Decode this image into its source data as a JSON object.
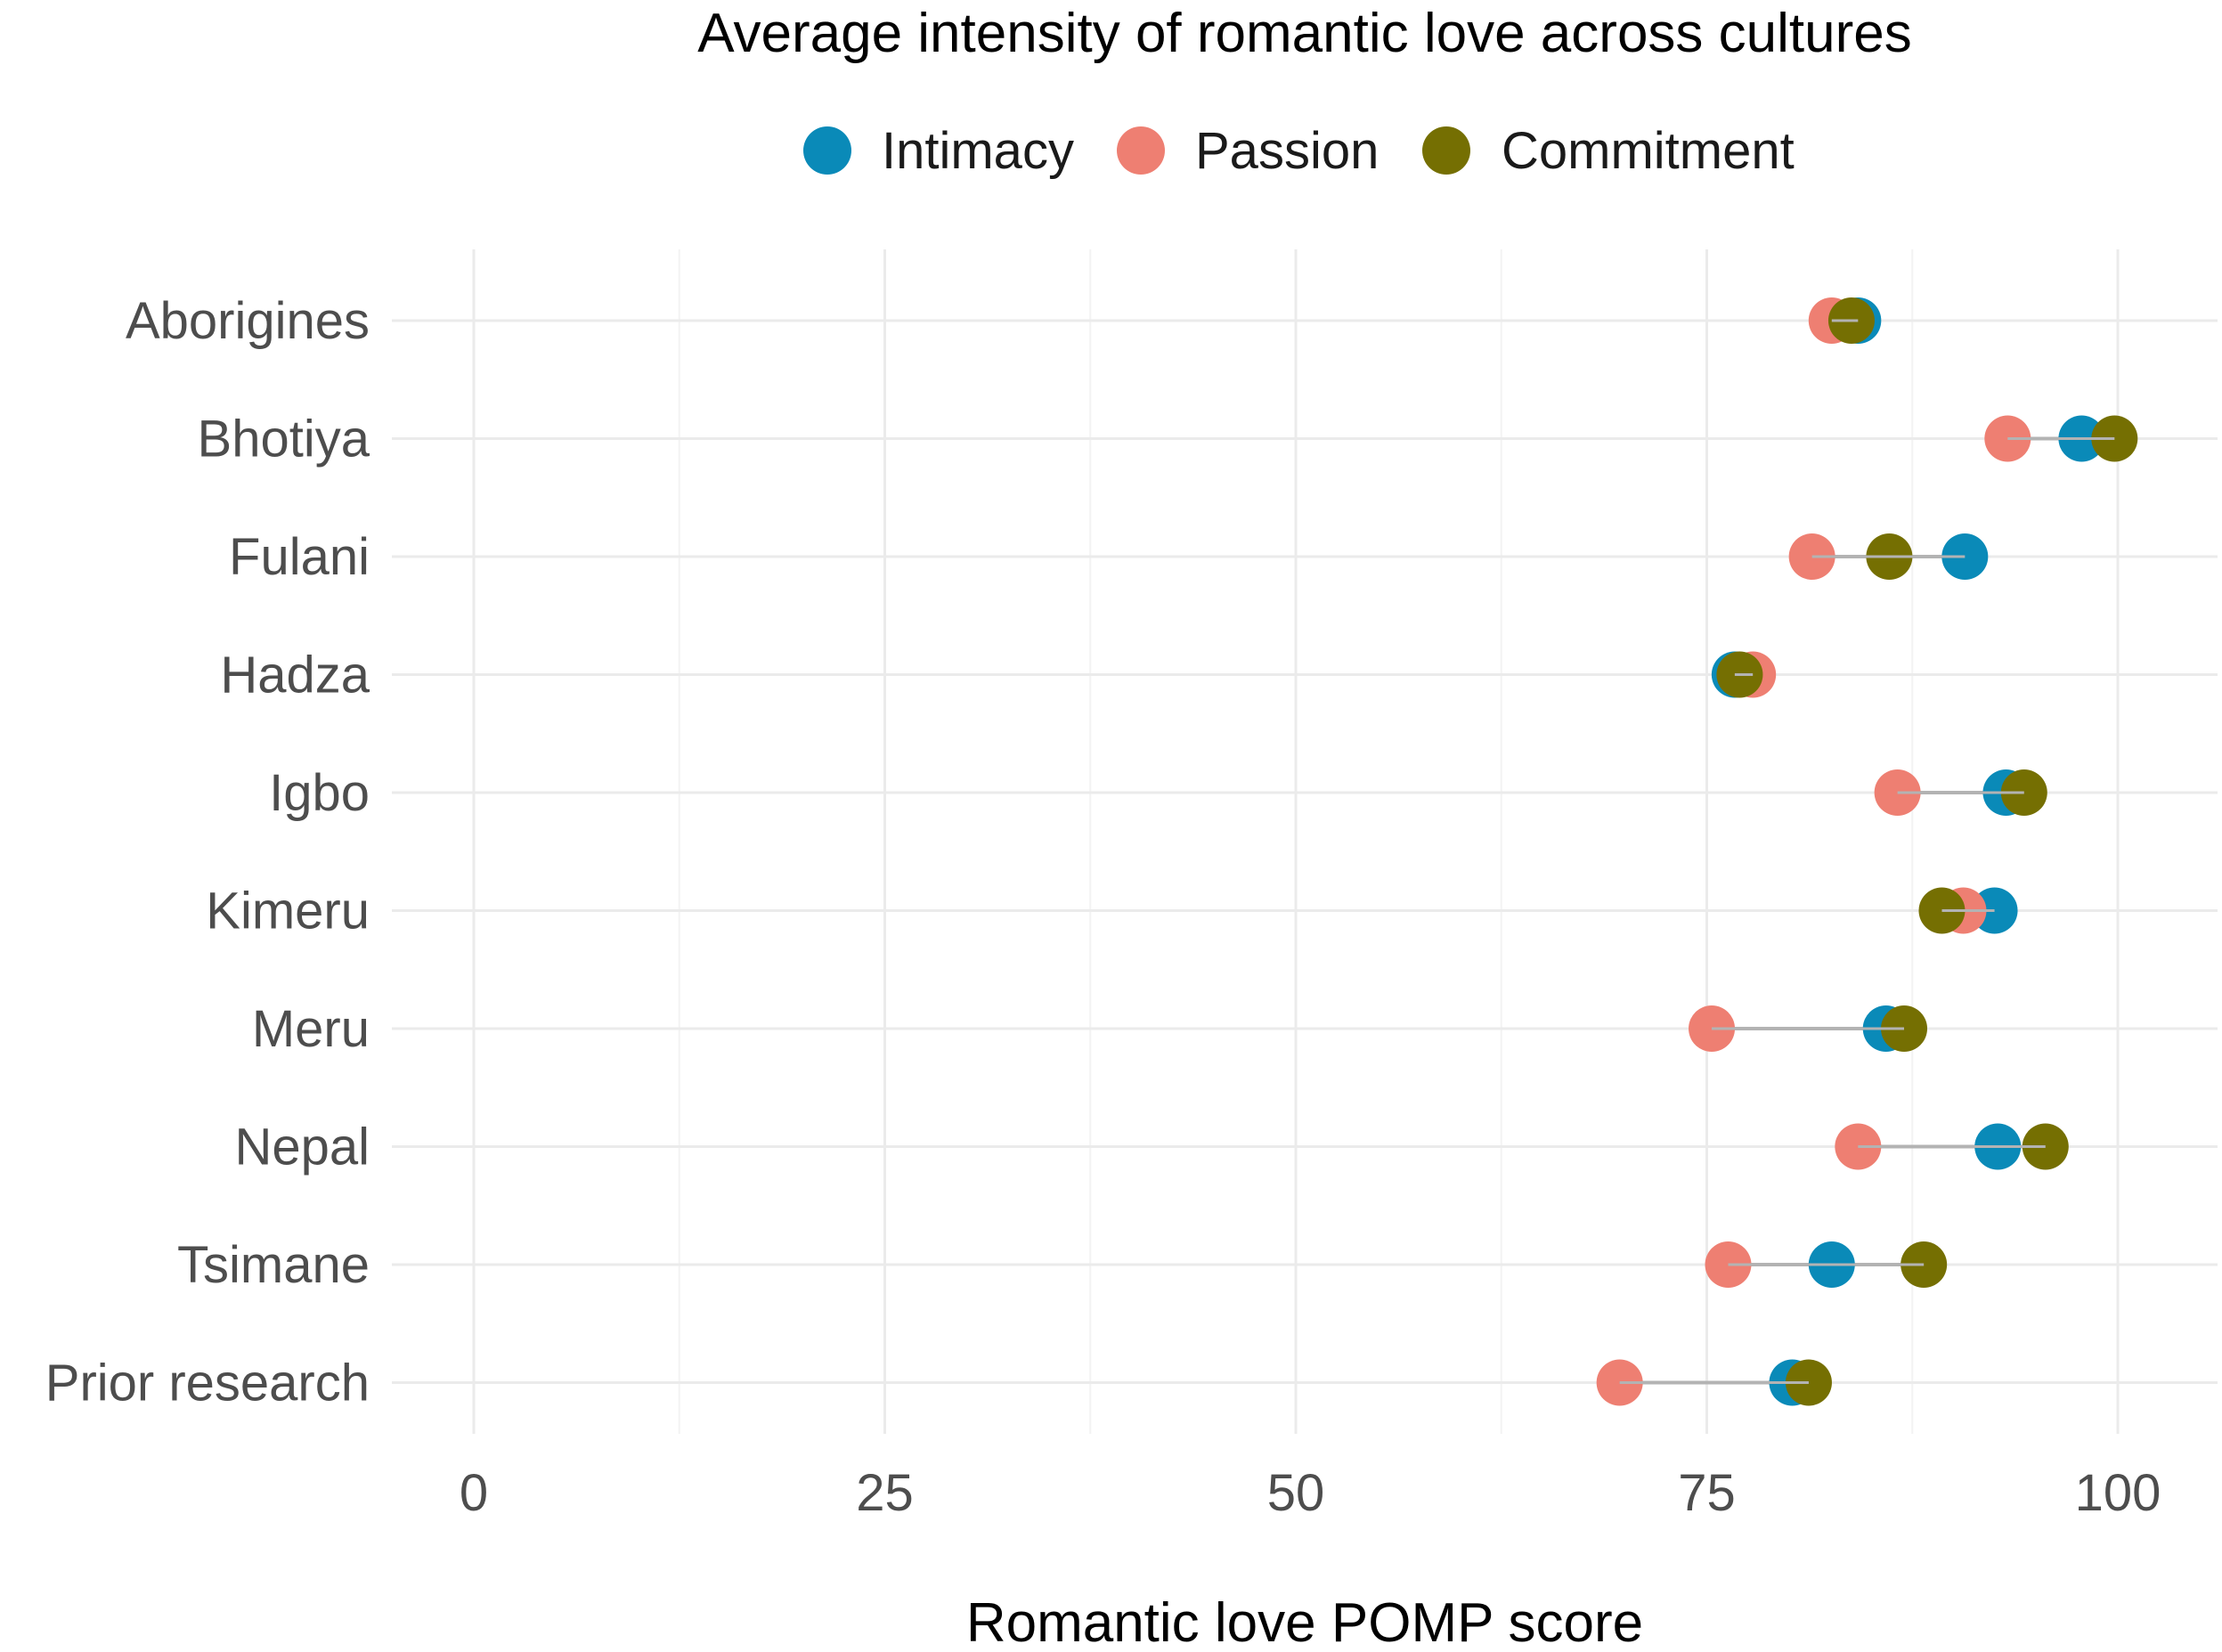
{
  "chart_data": {
    "type": "scatter",
    "title": "Average intensity of romantic love across cultures",
    "xlabel": "Romantic love POMP score",
    "ylabel": "",
    "xlim": [
      0,
      100
    ],
    "xticks": [
      "0",
      "25",
      "50",
      "75",
      "100"
    ],
    "grid": true,
    "legend_position": "top",
    "categories": [
      "Aborigines",
      "Bhotiya",
      "Fulani",
      "Hadza",
      "Igbo",
      "Kimeru",
      "Meru",
      "Nepal",
      "Tsimane",
      "Prior research"
    ],
    "series": [
      {
        "name": "Intimacy",
        "color": "#0a8ab8",
        "values": [
          84.2,
          97.8,
          90.7,
          76.7,
          93.2,
          92.5,
          85.9,
          92.7,
          82.6,
          80.2
        ]
      },
      {
        "name": "Passion",
        "color": "#ee7f72",
        "values": [
          82.6,
          93.3,
          81.4,
          77.8,
          86.6,
          90.6,
          75.3,
          84.2,
          76.3,
          69.7
        ]
      },
      {
        "name": "Commitment",
        "color": "#756f02",
        "values": [
          83.8,
          99.8,
          86.1,
          77.0,
          94.3,
          89.3,
          87.0,
          95.6,
          88.2,
          81.2
        ]
      }
    ]
  }
}
